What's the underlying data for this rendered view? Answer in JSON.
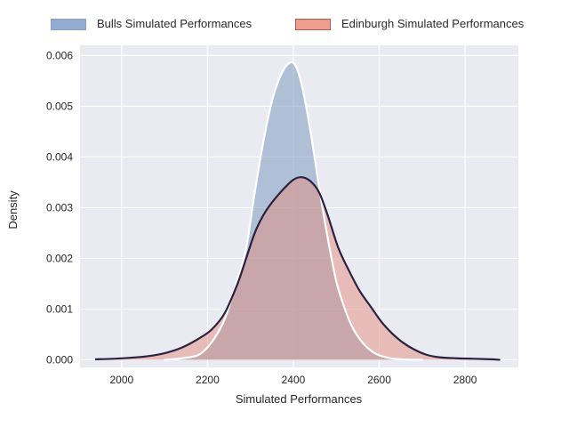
{
  "figure": {
    "background": "#ffffff",
    "axes_background": "#eaeaf2",
    "grid_color": "#ffffff",
    "text_color": "#262626"
  },
  "legend": {
    "position": "top",
    "items": [
      {
        "label": "Bulls Simulated Performances",
        "swatch_fill": "#92abce",
        "swatch_border": "#87a3c9"
      },
      {
        "label": "Edinburgh Simulated Performances",
        "swatch_fill": "#ef9e8d",
        "swatch_border": "#a55c52"
      }
    ]
  },
  "chart_data": {
    "type": "area",
    "subtype": "kde-density",
    "title": "",
    "xlabel": "Simulated Performances",
    "ylabel": "Density",
    "xlim": [
      1903,
      2924
    ],
    "ylim": [
      -0.00015,
      0.0062
    ],
    "xticks": [
      2000,
      2200,
      2400,
      2600,
      2800
    ],
    "yticks": [
      0.0,
      0.001,
      0.002,
      0.003,
      0.004,
      0.005,
      0.006
    ],
    "ytick_decimals": 3,
    "grid": true,
    "legend_position": "top-outside",
    "series": [
      {
        "name": "Bulls Simulated Performances",
        "id": "bulls",
        "fill": "#7d9cc0",
        "fill_opacity": 0.55,
        "line_color": "#ffffff",
        "line_width": 2.2,
        "peak": {
          "x": 2390,
          "y": 0.00585
        },
        "points": [
          [
            2100,
            0.0
          ],
          [
            2140,
            3e-05
          ],
          [
            2180,
            0.0001
          ],
          [
            2210,
            0.00035
          ],
          [
            2240,
            0.0008
          ],
          [
            2270,
            0.0016
          ],
          [
            2290,
            0.0022
          ],
          [
            2310,
            0.0033
          ],
          [
            2330,
            0.0043
          ],
          [
            2350,
            0.0051
          ],
          [
            2370,
            0.0056
          ],
          [
            2390,
            0.00585
          ],
          [
            2405,
            0.0058
          ],
          [
            2420,
            0.0054
          ],
          [
            2440,
            0.0045
          ],
          [
            2460,
            0.0034
          ],
          [
            2480,
            0.0024
          ],
          [
            2500,
            0.00155
          ],
          [
            2520,
            0.001
          ],
          [
            2540,
            0.0006
          ],
          [
            2565,
            0.0003
          ],
          [
            2590,
            0.00013
          ],
          [
            2615,
            5e-05
          ],
          [
            2650,
            1e-05
          ],
          [
            2700,
            0.0
          ]
        ]
      },
      {
        "name": "Edinburgh Simulated Performances",
        "id": "edinburgh",
        "fill": "#e28c7d",
        "fill_opacity": 0.5,
        "line_color": "#2a2240",
        "line_width": 2.2,
        "peak": {
          "x": 2420,
          "y": 0.0036
        },
        "points": [
          [
            1940,
            1e-05
          ],
          [
            1980,
            2e-05
          ],
          [
            2020,
            4e-05
          ],
          [
            2060,
            7e-05
          ],
          [
            2100,
            0.00013
          ],
          [
            2140,
            0.00024
          ],
          [
            2180,
            0.00042
          ],
          [
            2210,
            0.0006
          ],
          [
            2240,
            0.00092
          ],
          [
            2270,
            0.0015
          ],
          [
            2290,
            0.002
          ],
          [
            2310,
            0.0025
          ],
          [
            2330,
            0.00285
          ],
          [
            2350,
            0.0031
          ],
          [
            2375,
            0.00335
          ],
          [
            2400,
            0.00355
          ],
          [
            2420,
            0.0036
          ],
          [
            2440,
            0.00352
          ],
          [
            2460,
            0.0033
          ],
          [
            2480,
            0.00285
          ],
          [
            2505,
            0.0022
          ],
          [
            2530,
            0.00175
          ],
          [
            2555,
            0.00135
          ],
          [
            2580,
            0.00105
          ],
          [
            2605,
            0.00075
          ],
          [
            2630,
            0.00052
          ],
          [
            2655,
            0.00034
          ],
          [
            2680,
            0.00021
          ],
          [
            2710,
            0.0001
          ],
          [
            2740,
            5e-05
          ],
          [
            2780,
            3e-05
          ],
          [
            2820,
            2e-05
          ],
          [
            2860,
            1e-05
          ],
          [
            2880,
            0.0
          ]
        ]
      }
    ]
  }
}
